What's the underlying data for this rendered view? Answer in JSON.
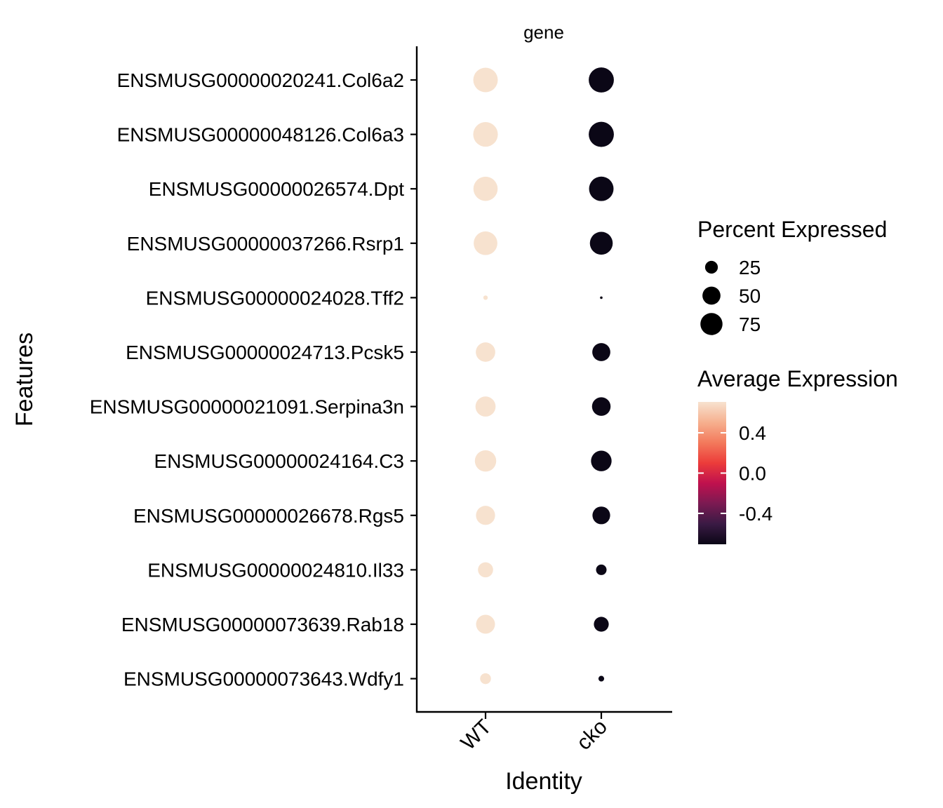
{
  "chart_data": {
    "type": "dotplot",
    "facet_label": "gene",
    "xlabel": "Identity",
    "ylabel": "Features",
    "x_categories": [
      "WT",
      "cko"
    ],
    "features": [
      "ENSMUSG00000020241.Col6a2",
      "ENSMUSG00000048126.Col6a3",
      "ENSMUSG00000026574.Dpt",
      "ENSMUSG00000037266.Rsrp1",
      "ENSMUSG00000024028.Tff2",
      "ENSMUSG00000024713.Pcsk5",
      "ENSMUSG00000021091.Serpina3n",
      "ENSMUSG00000024164.C3",
      "ENSMUSG00000026678.Rgs5",
      "ENSMUSG00000024810.Il33",
      "ENSMUSG00000073639.Rab18",
      "ENSMUSG00000073643.Wdfy1"
    ],
    "points": [
      {
        "feature": "ENSMUSG00000020241.Col6a2",
        "identity": "WT",
        "pct_exp": 92,
        "avg_exp": 0.707
      },
      {
        "feature": "ENSMUSG00000020241.Col6a2",
        "identity": "cko",
        "pct_exp": 97,
        "avg_exp": -0.707
      },
      {
        "feature": "ENSMUSG00000048126.Col6a3",
        "identity": "WT",
        "pct_exp": 93,
        "avg_exp": 0.707
      },
      {
        "feature": "ENSMUSG00000048126.Col6a3",
        "identity": "cko",
        "pct_exp": 97,
        "avg_exp": -0.707
      },
      {
        "feature": "ENSMUSG00000026574.Dpt",
        "identity": "WT",
        "pct_exp": 90,
        "avg_exp": 0.707
      },
      {
        "feature": "ENSMUSG00000026574.Dpt",
        "identity": "cko",
        "pct_exp": 92,
        "avg_exp": -0.707
      },
      {
        "feature": "ENSMUSG00000037266.Rsrp1",
        "identity": "WT",
        "pct_exp": 86,
        "avg_exp": 0.707
      },
      {
        "feature": "ENSMUSG00000037266.Rsrp1",
        "identity": "cko",
        "pct_exp": 80,
        "avg_exp": -0.707
      },
      {
        "feature": "ENSMUSG00000024028.Tff2",
        "identity": "WT",
        "pct_exp": 3,
        "avg_exp": 0.707
      },
      {
        "feature": "ENSMUSG00000024028.Tff2",
        "identity": "cko",
        "pct_exp": 1,
        "avg_exp": -0.707
      },
      {
        "feature": "ENSMUSG00000024713.Pcsk5",
        "identity": "WT",
        "pct_exp": 58,
        "avg_exp": 0.707
      },
      {
        "feature": "ENSMUSG00000024713.Pcsk5",
        "identity": "cko",
        "pct_exp": 50,
        "avg_exp": -0.707
      },
      {
        "feature": "ENSMUSG00000021091.Serpina3n",
        "identity": "WT",
        "pct_exp": 62,
        "avg_exp": 0.707
      },
      {
        "feature": "ENSMUSG00000021091.Serpina3n",
        "identity": "cko",
        "pct_exp": 53,
        "avg_exp": -0.707
      },
      {
        "feature": "ENSMUSG00000024164.C3",
        "identity": "WT",
        "pct_exp": 70,
        "avg_exp": 0.707
      },
      {
        "feature": "ENSMUSG00000024164.C3",
        "identity": "cko",
        "pct_exp": 65,
        "avg_exp": -0.707
      },
      {
        "feature": "ENSMUSG00000026678.Rgs5",
        "identity": "WT",
        "pct_exp": 56,
        "avg_exp": 0.707
      },
      {
        "feature": "ENSMUSG00000026678.Rgs5",
        "identity": "cko",
        "pct_exp": 48,
        "avg_exp": -0.707
      },
      {
        "feature": "ENSMUSG00000024810.Il33",
        "identity": "WT",
        "pct_exp": 35,
        "avg_exp": 0.707
      },
      {
        "feature": "ENSMUSG00000024810.Il33",
        "identity": "cko",
        "pct_exp": 17,
        "avg_exp": -0.707
      },
      {
        "feature": "ENSMUSG00000073639.Rab18",
        "identity": "WT",
        "pct_exp": 55,
        "avg_exp": 0.707
      },
      {
        "feature": "ENSMUSG00000073639.Rab18",
        "identity": "cko",
        "pct_exp": 34,
        "avg_exp": -0.707
      },
      {
        "feature": "ENSMUSG00000073643.Wdfy1",
        "identity": "WT",
        "pct_exp": 18,
        "avg_exp": 0.707
      },
      {
        "feature": "ENSMUSG00000073643.Wdfy1",
        "identity": "cko",
        "pct_exp": 5,
        "avg_exp": -0.707
      }
    ],
    "size_legend": {
      "title": "Percent Expressed",
      "breaks": [
        25,
        50,
        75
      ],
      "labels": [
        "25",
        "50",
        "75"
      ],
      "range": [
        0,
        100
      ]
    },
    "color_legend": {
      "title": "Average Expression",
      "breaks": [
        0.4,
        0.0,
        -0.4
      ],
      "labels": [
        "0.4",
        "0.0",
        "-0.4"
      ],
      "range": [
        -0.707,
        0.707
      ],
      "colors": [
        "#0b0716",
        "#3a1a44",
        "#7b1a52",
        "#c0114e",
        "#ec3c3a",
        "#f37a5c",
        "#f6b08f",
        "#f7e2cf"
      ]
    },
    "legend_position": "right",
    "grid": false
  }
}
